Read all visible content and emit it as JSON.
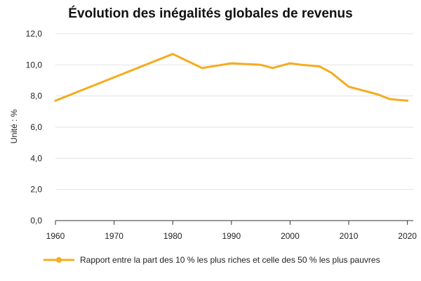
{
  "chart_data": {
    "type": "line",
    "title": "Évolution des inégalités globales de revenus",
    "ylabel": "Unité : %",
    "xlabel": "",
    "xlim": [
      1960,
      2021
    ],
    "ylim": [
      0,
      12
    ],
    "x_ticks": [
      1960,
      1970,
      1980,
      1990,
      2000,
      2010,
      2020
    ],
    "x_tick_labels": [
      "1960",
      "1970",
      "1980",
      "1990",
      "2000",
      "2010",
      "2020"
    ],
    "y_ticks": [
      0,
      2,
      4,
      6,
      8,
      10,
      12
    ],
    "y_tick_labels": [
      "0,0",
      "2,0",
      "4,0",
      "6,0",
      "8,0",
      "10,0",
      "12,0"
    ],
    "grid": "horizontal",
    "legend_position": "bottom-left",
    "series": [
      {
        "name": "Rapport entre la part des 10 % les plus riches et celle des 50 % les plus pauvres",
        "color": "#F5AC1F",
        "x": [
          1960,
          1980,
          1985,
          1990,
          1995,
          1997,
          2000,
          2002,
          2005,
          2007,
          2010,
          2015,
          2017,
          2020
        ],
        "y": [
          7.7,
          10.7,
          9.8,
          10.1,
          10.0,
          9.8,
          10.1,
          10.0,
          9.9,
          9.5,
          8.6,
          8.1,
          7.8,
          7.7
        ]
      }
    ]
  }
}
